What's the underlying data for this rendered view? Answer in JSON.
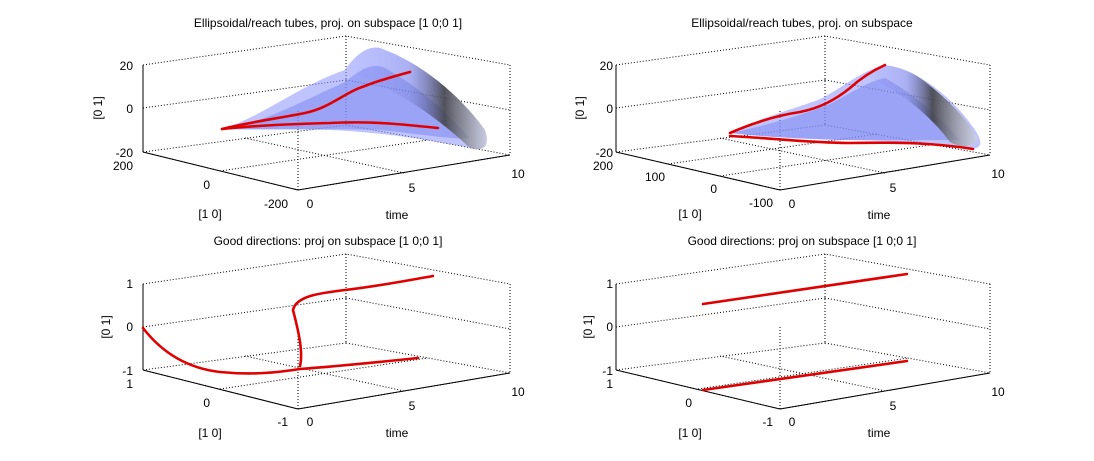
{
  "colors": {
    "box": "#000000",
    "grid": "#000000",
    "curve": "#e00000",
    "tube_base": "#8a93ff",
    "tube_dark": "#454545",
    "tube_light": "#c9c9c9"
  },
  "chart_data": [
    {
      "type": "surface3d",
      "title": "Ellipsoidal/reach tubes, proj. on subspace [1 0;0 1]",
      "xlabel": "time",
      "ylabel": "[1 0]",
      "zlabel": "[0 1]",
      "xticks": [
        "0",
        "5",
        "10"
      ],
      "yticks": [
        "-200",
        "0",
        "200"
      ],
      "zticks": [
        "-20",
        "0",
        "20"
      ],
      "xlim": [
        0,
        10
      ],
      "ylim": [
        -200,
        200
      ],
      "zlim": [
        -20,
        20
      ],
      "grid": true
    },
    {
      "type": "surface3d",
      "title": "Ellipsoidal/reach tubes, proj. on subspace",
      "xlabel": "time",
      "ylabel": "[1 0]",
      "zlabel": "[0 1]",
      "xticks": [
        "0",
        "5",
        "10"
      ],
      "yticks": [
        "-100",
        "0",
        "100",
        "200"
      ],
      "zticks": [
        "-20",
        "0",
        "20"
      ],
      "xlim": [
        0,
        10
      ],
      "ylim": [
        -100,
        200
      ],
      "zlim": [
        -20,
        20
      ],
      "grid": true
    },
    {
      "type": "line3d",
      "title": "Good directions: proj on subspace [1 0;0 1]",
      "xlabel": "time",
      "ylabel": "[1 0]",
      "zlabel": "[0 1]",
      "xticks": [
        "0",
        "5",
        "10"
      ],
      "yticks": [
        "-1",
        "0",
        "1"
      ],
      "zticks": [
        "-1",
        "0",
        "1"
      ],
      "xlim": [
        0,
        10
      ],
      "ylim": [
        -1,
        1
      ],
      "zlim": [
        -1,
        1
      ],
      "grid": true
    },
    {
      "type": "line3d",
      "title": "Good directions: proj on subspace [1 0;0 1]",
      "xlabel": "time",
      "ylabel": "[1 0]",
      "zlabel": "[0 1]",
      "xticks": [
        "0",
        "5",
        "10"
      ],
      "yticks": [
        "-1",
        "0",
        "1"
      ],
      "zticks": [
        "-1",
        "0",
        "1"
      ],
      "xlim": [
        0,
        10
      ],
      "ylim": [
        -1,
        1
      ],
      "zlim": [
        -1,
        1
      ],
      "grid": true
    }
  ]
}
